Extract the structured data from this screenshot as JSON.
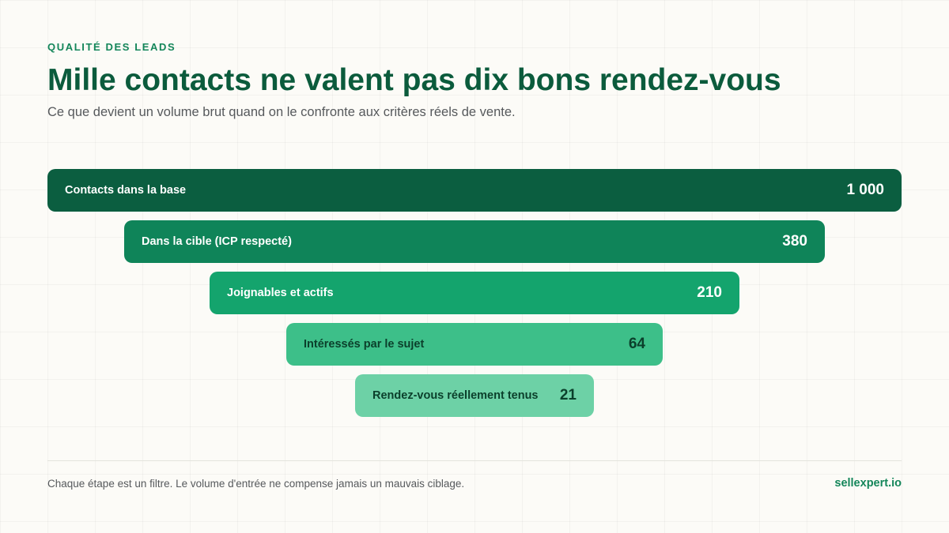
{
  "header": {
    "eyebrow": "QUALITÉ DES LEADS",
    "title": "Mille contacts ne valent pas dix bons rendez-vous",
    "subtitle": "Ce que devient un volume brut quand on le confronte aux critères réels de vente."
  },
  "chart_data": {
    "type": "bar",
    "orientation": "horizontal-funnel",
    "categories": [
      "Contacts dans la base",
      "Dans la cible (ICP respecté)",
      "Joignables et actifs",
      "Intéressés par le sujet",
      "Rendez-vous réellement tenus"
    ],
    "values": [
      1000,
      380,
      210,
      64,
      21
    ],
    "value_labels": [
      "1 000",
      "380",
      "210",
      "64",
      "21"
    ],
    "colors": [
      "#0b5e40",
      "#0f8459",
      "#14a46d",
      "#3dbf89",
      "#6dd1a6"
    ],
    "text_colors": [
      "#ffffff",
      "#ffffff",
      "#ffffff",
      "#0b3f2b",
      "#0b3f2b"
    ]
  },
  "footer": {
    "note": "Chaque étape est un filtre. Le volume d'entrée ne compense jamais un mauvais ciblage.",
    "brand": "sellexpert.io"
  }
}
